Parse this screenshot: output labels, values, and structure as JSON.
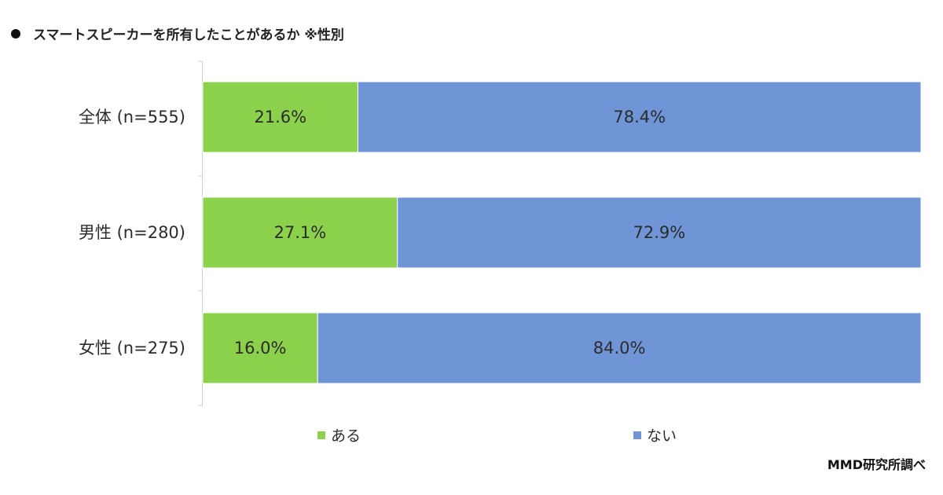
{
  "title": "スマートスピーカーを所有したことがあるか ※性別",
  "source": "MMD研究所調べ",
  "chart_data": {
    "type": "bar",
    "orientation": "horizontal",
    "stacked": true,
    "percent_stacked": true,
    "title": "スマートスピーカーを所有したことがあるか ※性別",
    "categories": [
      "全体 (n=555)",
      "男性 (n=280)",
      "女性 (n=275)"
    ],
    "series": [
      {
        "name": "ある",
        "color": "#8cd14c",
        "values": [
          21.6,
          27.1,
          16.0
        ],
        "labels": [
          "21.6%",
          "27.1%",
          "16.0%"
        ]
      },
      {
        "name": "ない",
        "color": "#6f95d6",
        "values": [
          78.4,
          72.9,
          84.0
        ],
        "labels": [
          "78.4%",
          "72.9%",
          "84.0%"
        ]
      }
    ],
    "xlim": [
      0,
      100
    ],
    "grid": false,
    "legend": "bottom"
  }
}
